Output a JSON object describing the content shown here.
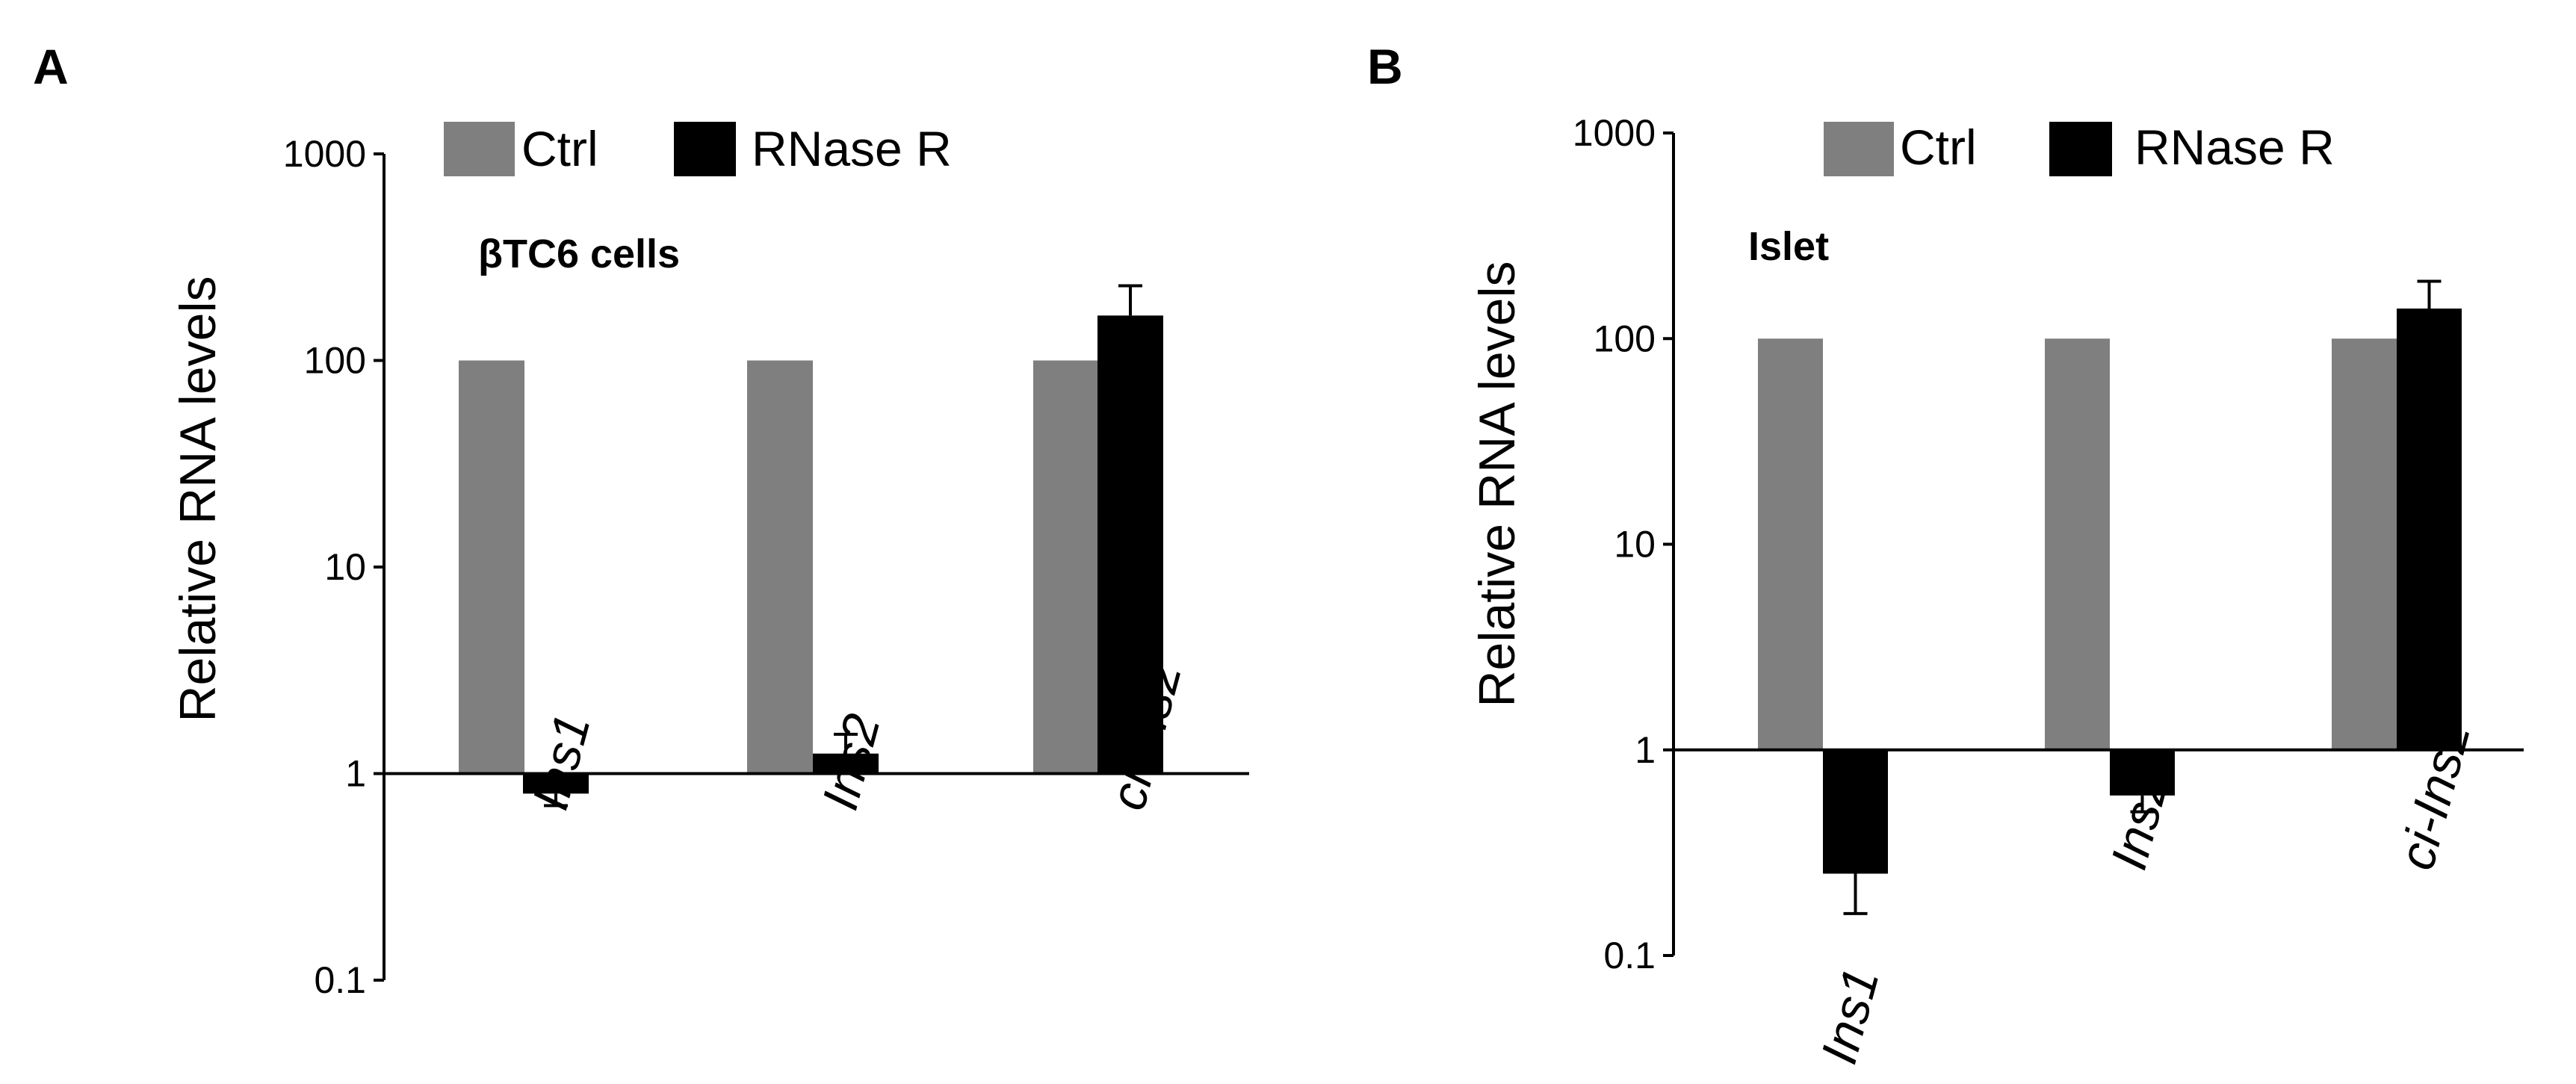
{
  "colors": {
    "ctrl": "#7f7f7f",
    "rnase": "#000000",
    "axis": "#000000"
  },
  "chart_data": [
    {
      "type": "bar",
      "panel": "A",
      "subtitle": "βTC6 cells",
      "ylabel": "Relative RNA levels",
      "yscale": "log",
      "ylim": [
        0.1,
        1000
      ],
      "yticks": [
        {
          "value": 0.1,
          "label": "0.1"
        },
        {
          "value": 1,
          "label": "1"
        },
        {
          "value": 10,
          "label": "10"
        },
        {
          "value": 100,
          "label": "100"
        },
        {
          "value": 1000,
          "label": "1000"
        }
      ],
      "baseline": 1,
      "categories": [
        "Ins1",
        "Ins2",
        "ci-Ins2"
      ],
      "legend": [
        "Ctrl",
        "RNase R"
      ],
      "legend_position": "top",
      "series": [
        {
          "name": "Ctrl",
          "color": "#7f7f7f",
          "values": [
            100,
            100,
            100
          ],
          "errors": [
            null,
            null,
            null
          ]
        },
        {
          "name": "RNase R",
          "color": "#000000",
          "values": [
            0.8,
            1.25,
            165
          ],
          "errors": [
            0.1,
            0.3,
            65
          ]
        }
      ]
    },
    {
      "type": "bar",
      "panel": "B",
      "subtitle": "Islet",
      "ylabel": "Relative RNA levels",
      "yscale": "log",
      "ylim": [
        0.1,
        1000
      ],
      "yticks": [
        {
          "value": 0.1,
          "label": "0.1"
        },
        {
          "value": 1,
          "label": "1"
        },
        {
          "value": 10,
          "label": "10"
        },
        {
          "value": 100,
          "label": "100"
        },
        {
          "value": 1000,
          "label": "1000"
        }
      ],
      "baseline": 1,
      "categories": [
        "Ins1",
        "Ins2",
        "ci-Ins2"
      ],
      "legend": [
        "Ctrl",
        "RNase R"
      ],
      "legend_position": "top",
      "series": [
        {
          "name": "Ctrl",
          "color": "#7f7f7f",
          "values": [
            100,
            100,
            100
          ],
          "errors": [
            null,
            null,
            null
          ]
        },
        {
          "name": "RNase R",
          "color": "#000000",
          "values": [
            0.25,
            0.6,
            140
          ],
          "errors": [
            0.09,
            0.1,
            50
          ]
        }
      ]
    }
  ]
}
